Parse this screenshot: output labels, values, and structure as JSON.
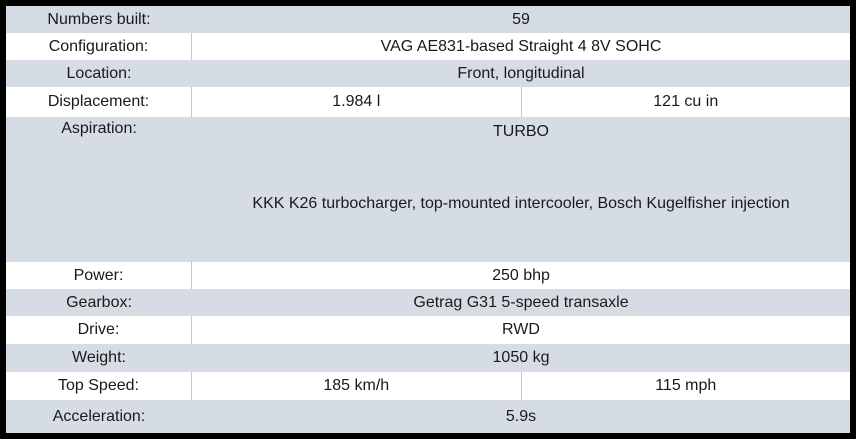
{
  "colors": {
    "outer_border": "#000000",
    "shaded_row": "#d6dce4",
    "plain_row": "#ffffff",
    "cell_divider": "#c3c8cf",
    "text": "#1a1a1a"
  },
  "rows": [
    {
      "label": "Numbers built:",
      "values": [
        "59"
      ]
    },
    {
      "label": "Configuration:",
      "values": [
        "VAG AE831-based Straight 4 8V SOHC"
      ]
    },
    {
      "label": "Location:",
      "values": [
        "Front, longitudinal"
      ]
    },
    {
      "label": "Displacement:",
      "values": [
        "1.984 l",
        "121 cu in"
      ]
    },
    {
      "label": "Aspiration:",
      "values": [
        "TURBO"
      ],
      "note": "KKK K26 turbocharger, top-mounted intercooler, Bosch Kugelfisher injection"
    },
    {
      "label": "Power:",
      "values": [
        "250 bhp"
      ]
    },
    {
      "label": "Gearbox:",
      "values": [
        "Getrag G31 5-speed transaxle"
      ]
    },
    {
      "label": "Drive:",
      "values": [
        "RWD"
      ]
    },
    {
      "label": "Weight:",
      "values": [
        "1050 kg"
      ]
    },
    {
      "label": "Top Speed:",
      "values": [
        "185 km/h",
        "115 mph"
      ]
    },
    {
      "label": "Acceleration:",
      "values": [
        "5.9s"
      ]
    }
  ]
}
